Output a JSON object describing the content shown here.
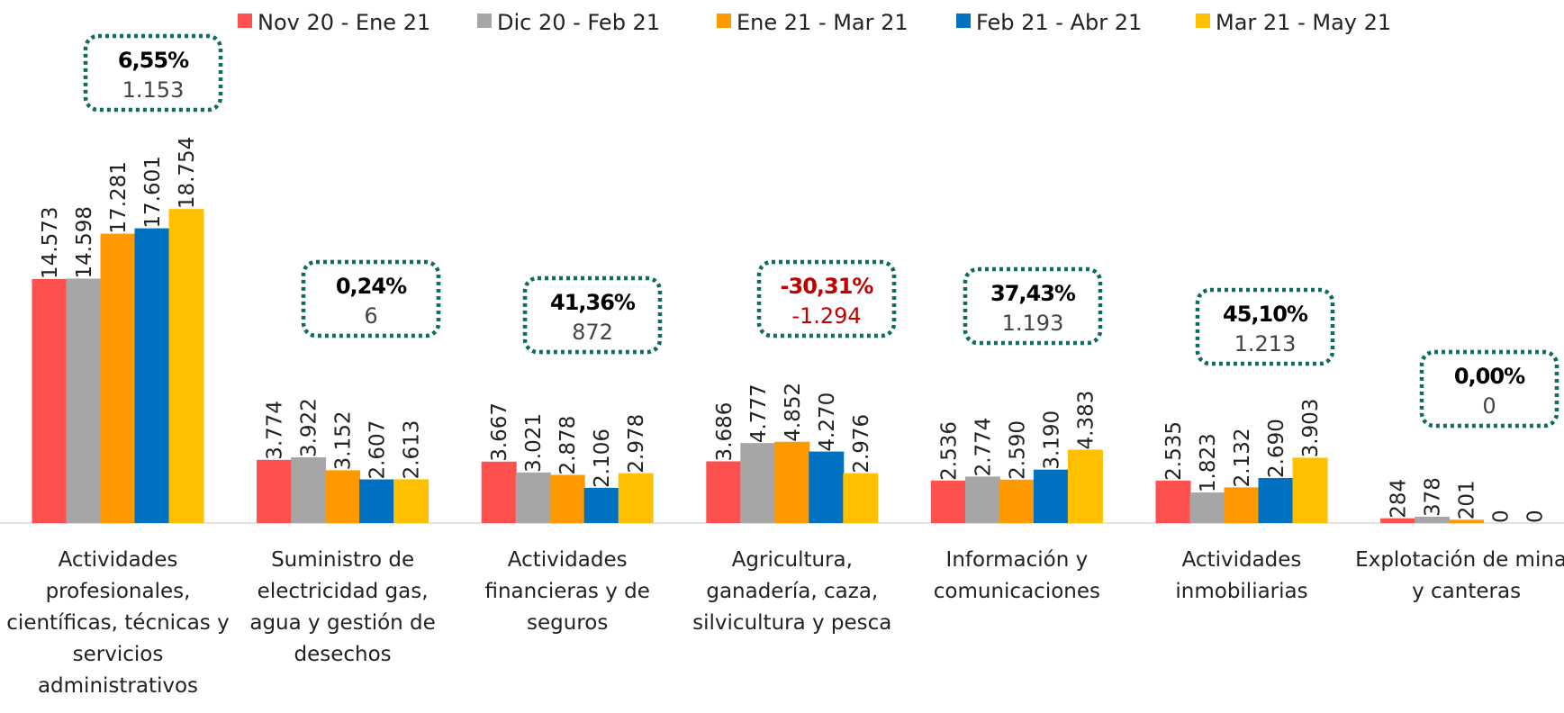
{
  "chart_data": {
    "type": "bar",
    "categories": [
      "Actividades profesionales, científicas, técnicas y servicios administrativos",
      "Suministro de electricidad gas, agua y gestión de desechos",
      "Actividades financieras y de seguros",
      "Agricultura, ganadería, caza, silvicultura y pesca",
      "Información y comunicaciones",
      "Actividades inmobiliarias",
      "Explotación de minas y canteras"
    ],
    "series": [
      {
        "name": "Nov 20 - Ene 21",
        "color": "#ff5050",
        "values": [
          14573,
          3774,
          3667,
          3686,
          2536,
          2535,
          284
        ],
        "value_labels": [
          "14.573",
          "3.774",
          "3.667",
          "3.686",
          "2.536",
          "2.535",
          "284"
        ]
      },
      {
        "name": "Dic 20 - Feb 21",
        "color": "#a6a6a6",
        "values": [
          14598,
          3922,
          3021,
          4777,
          2774,
          1823,
          378
        ],
        "value_labels": [
          "14.598",
          "3.922",
          "3.021",
          "4.777",
          "2.774",
          "1.823",
          "378"
        ]
      },
      {
        "name": "Ene 21 - Mar 21",
        "color": "#ff9900",
        "values": [
          17281,
          3152,
          2878,
          4852,
          2590,
          2132,
          201
        ],
        "value_labels": [
          "17.281",
          "3.152",
          "2.878",
          "4.852",
          "2.590",
          "2.132",
          "201"
        ]
      },
      {
        "name": "Feb 21 - Abr 21",
        "color": "#0070c0",
        "values": [
          17601,
          2607,
          2106,
          4270,
          3190,
          2690,
          0
        ],
        "value_labels": [
          "17.601",
          "2.607",
          "2.106",
          "4.270",
          "3.190",
          "2.690",
          "0"
        ]
      },
      {
        "name": "Mar 21 - May 21",
        "color": "#ffc000",
        "values": [
          18754,
          2613,
          2978,
          2976,
          4383,
          3903,
          0
        ],
        "value_labels": [
          "18.754",
          "2.613",
          "2.978",
          "2.976",
          "4.383",
          "3.903",
          "0"
        ]
      }
    ],
    "annotations": [
      {
        "pct": "6,55%",
        "diff": "1.153",
        "color": "#000000"
      },
      {
        "pct": "0,24%",
        "diff": "6",
        "color": "#000000"
      },
      {
        "pct": "41,36%",
        "diff": "872",
        "color": "#000000"
      },
      {
        "pct": "-30,31%",
        "diff": "-1.294",
        "color": "#c00000"
      },
      {
        "pct": "37,43%",
        "diff": "1.193",
        "color": "#000000"
      },
      {
        "pct": "45,10%",
        "diff": "1.213",
        "color": "#000000"
      },
      {
        "pct": "0,00%",
        "diff": "0",
        "color": "#000000"
      }
    ],
    "ylim": [
      0,
      20000
    ]
  }
}
